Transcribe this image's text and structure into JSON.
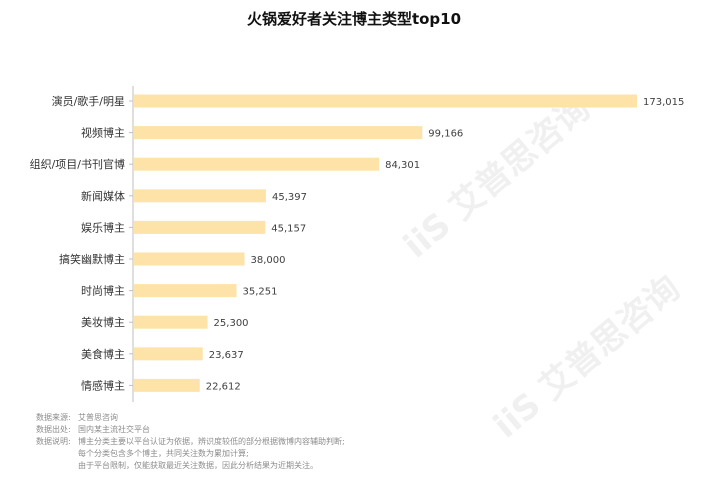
{
  "chart_data": {
    "type": "bar",
    "orientation": "horizontal",
    "title": "火锅爱好者关注博主类型top10",
    "categories": [
      "演员/歌手/明星",
      "视频博主",
      "组织/项目/书刊官博",
      "新闻媒体",
      "娱乐博主",
      "搞笑幽默博主",
      "时尚博主",
      "美妆博主",
      "美食博主",
      "情感博主"
    ],
    "values": [
      173015,
      99166,
      84301,
      45397,
      45157,
      38000,
      35251,
      25300,
      23637,
      22612
    ],
    "value_labels": [
      "173,015",
      "99,166",
      "84,301",
      "45,397",
      "45,157",
      "38,000",
      "35,251",
      "25,300",
      "23,637",
      "22,612"
    ],
    "xlim": [
      0,
      173015
    ],
    "bar_color": "#fde3a7",
    "grid": false,
    "legend": "none"
  },
  "notes": {
    "source_label": "数据来源:",
    "source_value": "艾普思咨询",
    "origin_label": "数据出处:",
    "origin_value": "国内某主流社交平台",
    "desc_label": "数据说明:",
    "desc_lines": [
      "博主分类主要以平台认证为依据，辨识度较低的部分根据微博内容辅助判断;",
      "每个分类包含多个博主，共同关注数为累加计算;",
      "由于平台限制，仅能获取最近关注数据，因此分析结果为近期关注。"
    ]
  },
  "watermark": "iiS 艾普思咨询"
}
